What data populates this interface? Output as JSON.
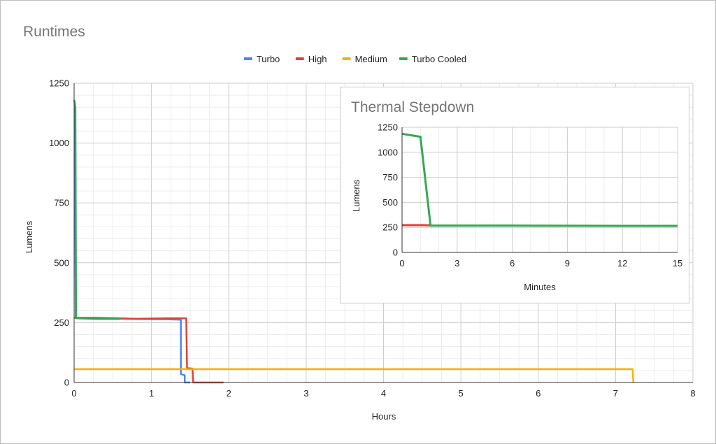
{
  "chart_data": [
    {
      "type": "line",
      "title": "Runtimes",
      "xlabel": "Hours",
      "ylabel": "Lumens",
      "xlim": [
        0,
        8
      ],
      "ylim": [
        0,
        1250
      ],
      "x_ticks": [
        "0",
        "1",
        "2",
        "3",
        "4",
        "5",
        "6",
        "7",
        "8"
      ],
      "y_ticks": [
        "0",
        "250",
        "500",
        "750",
        "1000",
        "1250"
      ],
      "grid": true,
      "legend_position": "top",
      "series": [
        {
          "name": "Turbo",
          "color": "#4a86e8",
          "points": [
            [
              0,
              1180
            ],
            [
              0.01,
              1170
            ],
            [
              0.02,
              270
            ],
            [
              0.3,
              268
            ],
            [
              0.8,
              265
            ],
            [
              1.2,
              264
            ],
            [
              1.38,
              262
            ],
            [
              1.38,
              35
            ],
            [
              1.43,
              30
            ],
            [
              1.43,
              0
            ],
            [
              1.5,
              0
            ]
          ]
        },
        {
          "name": "High",
          "color": "#db4437",
          "points": [
            [
              0,
              270
            ],
            [
              0.3,
              270
            ],
            [
              0.8,
              266
            ],
            [
              1.2,
              268
            ],
            [
              1.45,
              268
            ],
            [
              1.46,
              60
            ],
            [
              1.53,
              58
            ],
            [
              1.54,
              0
            ],
            [
              1.93,
              0
            ]
          ]
        },
        {
          "name": "Medium",
          "color": "#f4b400",
          "points": [
            [
              0,
              56
            ],
            [
              2,
              56
            ],
            [
              4,
              56
            ],
            [
              6,
              56
            ],
            [
              7.22,
              56
            ],
            [
              7.23,
              0
            ]
          ]
        },
        {
          "name": "Turbo Cooled",
          "color": "#34a853",
          "points": [
            [
              0,
              1180
            ],
            [
              0.017,
              1150
            ],
            [
              0.026,
              268
            ],
            [
              0.3,
              265
            ],
            [
              0.6,
              265
            ]
          ]
        }
      ]
    },
    {
      "type": "line",
      "title": "Thermal Stepdown",
      "xlabel": "Minutes",
      "ylabel": "Lumens",
      "xlim": [
        0,
        15
      ],
      "ylim": [
        0,
        1250
      ],
      "x_ticks": [
        "0",
        "3",
        "6",
        "9",
        "12",
        "15"
      ],
      "y_ticks": [
        "0",
        "250",
        "500",
        "750",
        "1000",
        "1250"
      ],
      "grid": true,
      "series": [
        {
          "color": "#db4437",
          "points": [
            [
              0,
              272
            ],
            [
              1.2,
              272
            ],
            [
              1.6,
              270
            ]
          ]
        },
        {
          "color": "#34a853",
          "points": [
            [
              0,
              1185
            ],
            [
              0.5,
              1170
            ],
            [
              1.0,
              1155
            ],
            [
              1.55,
              268
            ],
            [
              6,
              268
            ],
            [
              10,
              266
            ],
            [
              15,
              265
            ]
          ]
        }
      ]
    }
  ]
}
